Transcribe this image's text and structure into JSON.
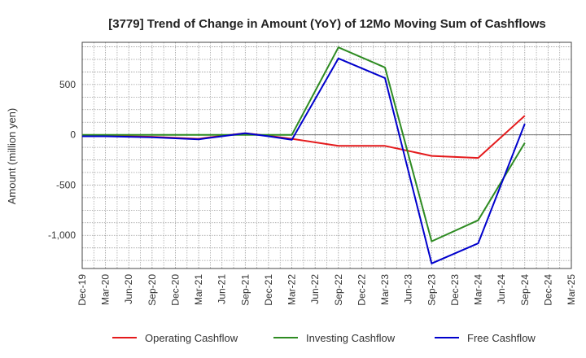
{
  "chart_data": {
    "type": "line",
    "title": "[3779]  Trend of Change in Amount (YoY) of 12Mo Moving Sum of Cashflows",
    "xlabel": "",
    "ylabel": "Amount (million yen)",
    "ylim": [
      -1330,
      920
    ],
    "yticks": [
      500,
      0,
      -500,
      -1000
    ],
    "ytick_labels": [
      "500",
      "0",
      "-500",
      "-1,000"
    ],
    "categories": [
      "Dec-19",
      "Mar-20",
      "Jun-20",
      "Sep-20",
      "Dec-20",
      "Mar-21",
      "Jun-21",
      "Sep-21",
      "Dec-21",
      "Mar-22",
      "Jun-22",
      "Sep-22",
      "Dec-22",
      "Mar-23",
      "Jun-23",
      "Sep-23",
      "Dec-23",
      "Mar-24",
      "Jun-24",
      "Sep-24",
      "Dec-24",
      "Mar-25"
    ],
    "grid": true,
    "legend_position": "bottom",
    "series": [
      {
        "name": "Operating Cashflow",
        "color": "#e41a1c",
        "values": [
          -10,
          -10,
          -15,
          -20,
          -30,
          -40,
          -10,
          15,
          -10,
          -40,
          null,
          -110,
          null,
          -110,
          null,
          -210,
          null,
          -230,
          null,
          190,
          null,
          null
        ]
      },
      {
        "name": "Investing Cashflow",
        "color": "#2e8b22",
        "values": [
          0,
          0,
          0,
          0,
          0,
          0,
          0,
          0,
          0,
          0,
          null,
          870,
          null,
          670,
          null,
          -1060,
          null,
          -850,
          null,
          -80,
          null,
          null
        ]
      },
      {
        "name": "Free Cashflow",
        "color": "#0000cc",
        "values": [
          -15,
          -15,
          -20,
          -25,
          -35,
          -45,
          -15,
          15,
          -15,
          -50,
          null,
          760,
          null,
          565,
          null,
          -1280,
          null,
          -1080,
          null,
          110,
          null,
          null
        ]
      }
    ]
  }
}
